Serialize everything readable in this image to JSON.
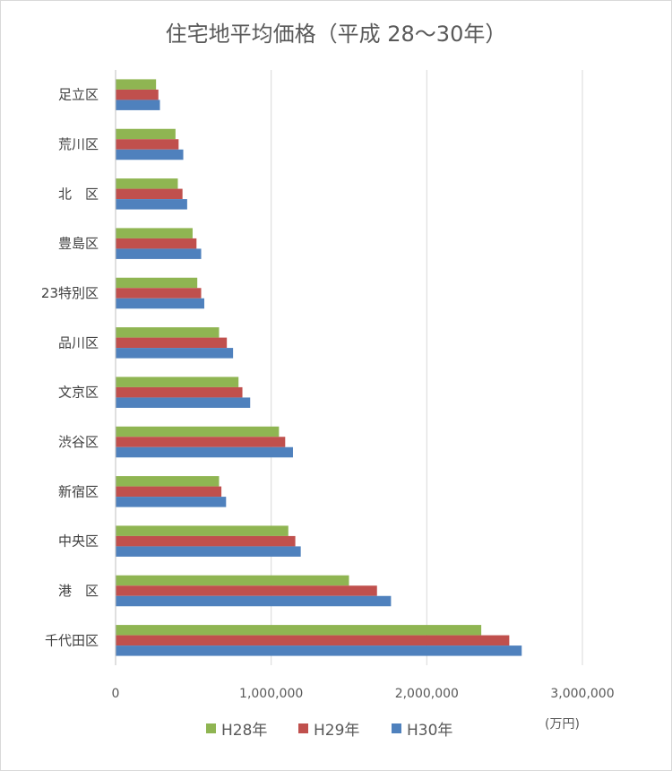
{
  "chart_data": {
    "type": "bar",
    "orientation": "horizontal",
    "title": "住宅地平均価格（平成 28～30年）",
    "unit": "(万円)",
    "categories": [
      "足立区",
      "荒川区",
      "北　区",
      "豊島区",
      "23特別区",
      "品川区",
      "文京区",
      "渋谷区",
      "新宿区",
      "中央区",
      "港　区",
      "千代田区"
    ],
    "series": [
      {
        "name": "H28年",
        "color": "#8fb552",
        "values": [
          260000,
          385000,
          400000,
          495000,
          525000,
          665000,
          790000,
          1050000,
          665000,
          1110000,
          1500000,
          2350000
        ]
      },
      {
        "name": "H29年",
        "color": "#c0504d",
        "values": [
          275000,
          405000,
          430000,
          520000,
          550000,
          715000,
          815000,
          1090000,
          680000,
          1155000,
          1680000,
          2530000
        ]
      },
      {
        "name": "H30年",
        "color": "#4f81bd",
        "values": [
          285000,
          435000,
          460000,
          550000,
          570000,
          755000,
          865000,
          1140000,
          710000,
          1190000,
          1770000,
          2610000
        ]
      }
    ],
    "xlim": [
      0,
      3000000
    ],
    "ticks": [
      0,
      1000000,
      2000000,
      3000000
    ],
    "tick_labels": [
      "0",
      "1,000,000",
      "2,000,000",
      "3,000,000"
    ],
    "grid": true,
    "legend_position": "bottom"
  }
}
